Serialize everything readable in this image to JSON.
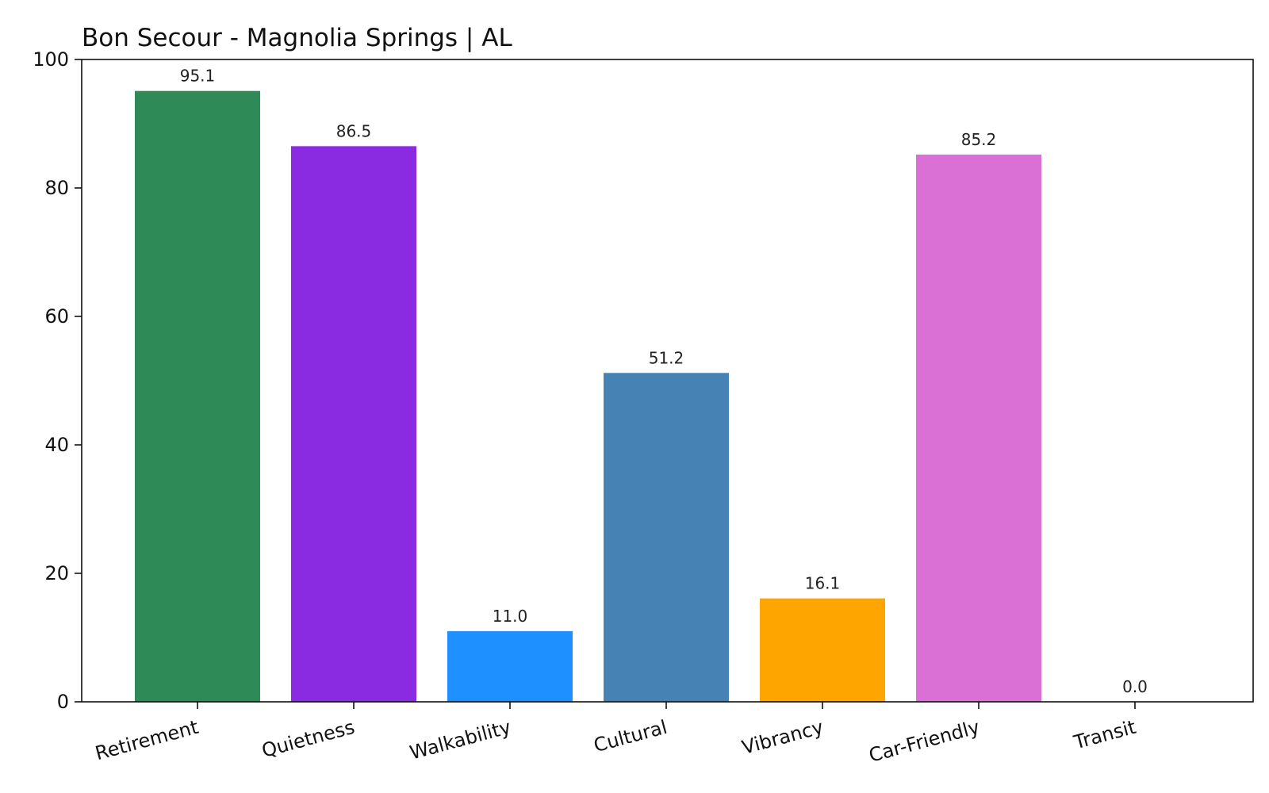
{
  "chart_data": {
    "type": "bar",
    "title": "Bon Secour - Magnolia Springs | AL",
    "xlabel": "",
    "ylabel": "",
    "categories": [
      "Retirement",
      "Quietness",
      "Walkability",
      "Cultural",
      "Vibrancy",
      "Car-Friendly",
      "Transit"
    ],
    "values": [
      95.1,
      86.5,
      11.0,
      51.2,
      16.1,
      85.2,
      0.0
    ],
    "value_labels": [
      "95.1",
      "86.5",
      "11.0",
      "51.2",
      "16.1",
      "85.2",
      "0.0"
    ],
    "colors": [
      "#2e8b57",
      "#8a2be2",
      "#1e90ff",
      "#4682b4",
      "#ffa500",
      "#da70d6",
      "#d3d3d3"
    ],
    "ylim": [
      0,
      100
    ],
    "yticks": [
      0,
      20,
      40,
      60,
      80,
      100
    ],
    "ytick_labels": [
      "0",
      "20",
      "40",
      "60",
      "80",
      "100"
    ],
    "grid": false,
    "legend": "none"
  }
}
